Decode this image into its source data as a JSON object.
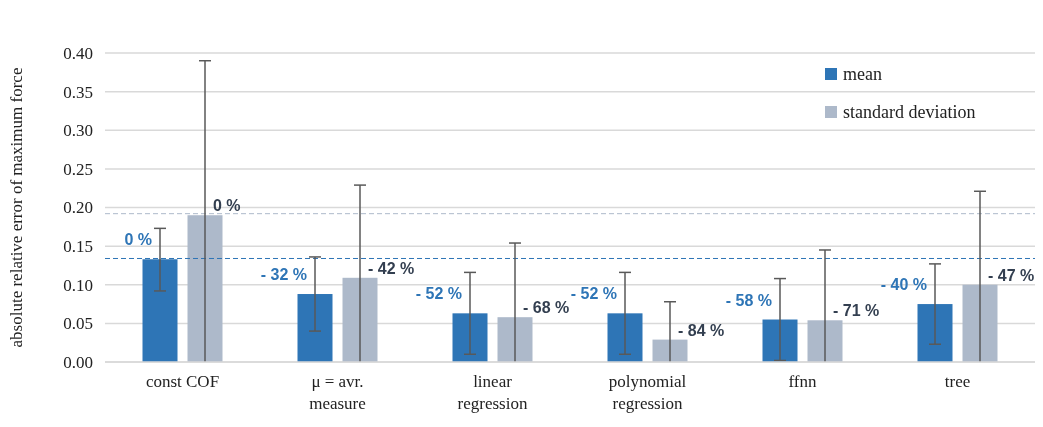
{
  "chart_data": {
    "type": "bar",
    "ylabel": "absolute relative error of maximum force",
    "categories": [
      "const COF",
      "μ = avr. measure",
      "linear regression",
      "polynomial regression",
      "ffnn",
      "tree"
    ],
    "series": [
      {
        "name": "mean",
        "color": "#2e75b6",
        "values": [
          0.133,
          0.088,
          0.063,
          0.063,
          0.055,
          0.075
        ],
        "errors": [
          [
            0.092,
            0.173
          ],
          [
            0.04,
            0.136
          ],
          [
            0.01,
            0.116
          ],
          [
            0.01,
            0.116
          ],
          [
            0.002,
            0.108
          ],
          [
            0.023,
            0.127
          ]
        ]
      },
      {
        "name": "standard deviation",
        "color": "#adb9ca",
        "values": [
          0.19,
          0.109,
          0.058,
          0.029,
          0.054,
          0.1
        ],
        "errors": [
          [
            0,
            0.39
          ],
          [
            0,
            0.229
          ],
          [
            0,
            0.154
          ],
          [
            0,
            0.078
          ],
          [
            0,
            0.145
          ],
          [
            0,
            0.221
          ]
        ]
      }
    ],
    "annotations": [
      "0 %",
      "0 %",
      "- 32 %",
      "- 42 %",
      "- 52 %",
      "- 68 %",
      "- 52 %",
      "- 84 %",
      "- 58 %",
      "- 71 %",
      "- 40 %",
      "- 47 %"
    ],
    "ylim": [
      0,
      0.4
    ],
    "yticks": [
      {
        "value": 0,
        "label": "0.00"
      },
      {
        "value": 0.05,
        "label": "0.05"
      },
      {
        "value": 0.1,
        "label": "0.10"
      },
      {
        "value": 0.15,
        "label": "0.15"
      },
      {
        "value": 0.2,
        "label": "0.20"
      },
      {
        "value": 0.25,
        "label": "0.25"
      },
      {
        "value": 0.3,
        "label": "0.30"
      },
      {
        "value": 0.35,
        "label": "0.35"
      },
      {
        "value": 0.4,
        "label": "0.40"
      }
    ],
    "ref_lines": [
      {
        "axis": "y",
        "value": 0.134,
        "color": "#2e75b6",
        "line_style": "dashed"
      },
      {
        "axis": "y",
        "value": 0.192,
        "color": "#adb9ca",
        "line_style": "dashed"
      }
    ],
    "grid": "y",
    "legend": "top right"
  }
}
